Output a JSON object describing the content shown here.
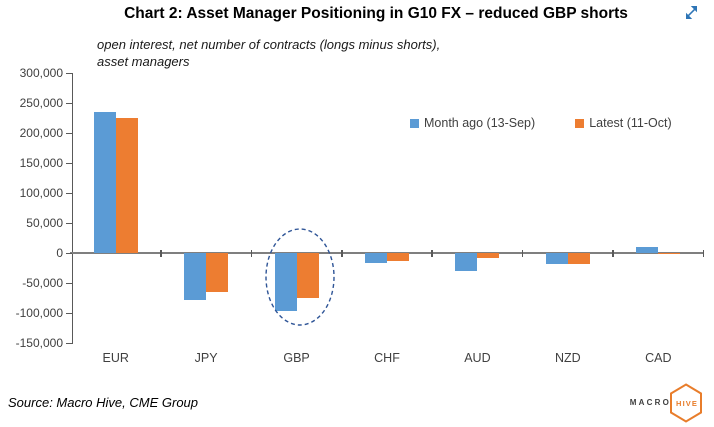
{
  "header": {
    "title": "Chart 2: Asset Manager Positioning in G10 FX – reduced GBP shorts",
    "expand_icon": "expand-arrows-icon"
  },
  "subtitle": {
    "line1": "open interest, net number of contracts (longs minus shorts),",
    "line2": "asset managers"
  },
  "footer": {
    "source": "Source: Macro Hive, CME Group",
    "logo_macro": "MACRO",
    "logo_hive": "HIVE",
    "logo_icon": "hexagon-icon"
  },
  "colors": {
    "series_month_ago": "#5B9BD5",
    "series_latest": "#ED7D31",
    "annotation_ellipse": "#2F5597",
    "axis_line": "#7F7F7F",
    "tick_text": "#404040",
    "expand_icon": "#2E75B6",
    "logo_orange": "#E87D2B"
  },
  "chart_data": {
    "type": "bar",
    "title": "Chart 2: Asset Manager Positioning in G10 FX – reduced GBP shorts",
    "subtitle": "open interest, net number of contracts (longs minus shorts), asset managers",
    "categories": [
      "EUR",
      "JPY",
      "GBP",
      "CHF",
      "AUD",
      "NZD",
      "CAD"
    ],
    "series": [
      {
        "name": "Month ago (13-Sep)",
        "color": "#5B9BD5",
        "values": [
          235000,
          -78000,
          -96000,
          -16000,
          -29000,
          -18000,
          11000
        ]
      },
      {
        "name": "Latest (11-Oct)",
        "color": "#ED7D31",
        "values": [
          225000,
          -65000,
          -74000,
          -13000,
          -8000,
          -18000,
          -2000
        ]
      }
    ],
    "ylim": [
      -150000,
      300000
    ],
    "ytick_step": 50000,
    "grid": false,
    "legend_position": "top-right",
    "annotation": {
      "type": "dashed-ellipse",
      "category": "GBP",
      "color": "#2F5597"
    }
  }
}
